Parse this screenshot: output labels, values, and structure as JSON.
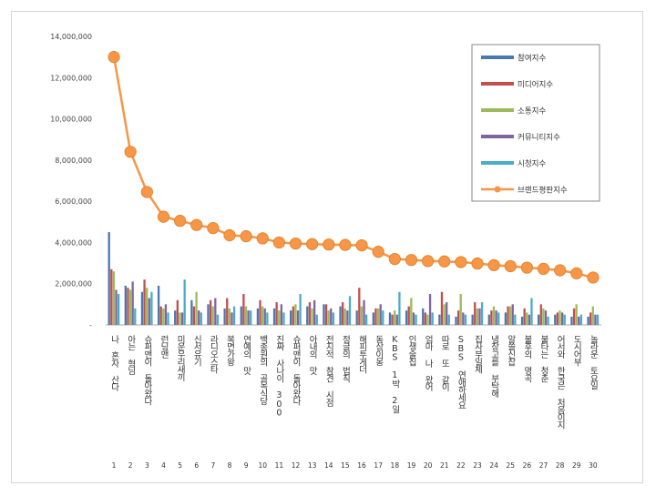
{
  "chart_data": {
    "type": "bar",
    "ylim": [
      0,
      14000000
    ],
    "yticks": [
      "14,000,000",
      "12,000,000",
      "10,000,000",
      "8,000,000",
      "6,000,000",
      "4,000,000",
      "2,000,000",
      "-"
    ],
    "ytick_values": [
      14000000,
      12000000,
      10000000,
      8000000,
      6000000,
      4000000,
      2000000,
      0
    ],
    "grid": false,
    "legend_position": "top-right",
    "x": [
      "1",
      "2",
      "3",
      "4",
      "5",
      "6",
      "7",
      "8",
      "9",
      "10",
      "11",
      "12",
      "13",
      "14",
      "15",
      "16",
      "17",
      "18",
      "19",
      "20",
      "21",
      "22",
      "23",
      "24",
      "25",
      "26",
      "27",
      "28",
      "29",
      "30"
    ],
    "categories": [
      "나 혼자 산다",
      "아는 형님",
      "슈퍼맨이 돌아왔다",
      "런닝맨",
      "미운우리새끼",
      "신서유기",
      "라디오스타",
      "복면가왕",
      "연예의 맛",
      "백종원의 골목식당",
      "진짜 사나이 300",
      "슈퍼맨이 돌아왔다",
      "아내의 맛",
      "전지적 참견 시점",
      "정글의 법칙",
      "해피투게더",
      "동상이몽",
      "KBS 1박 2일",
      "인생술집",
      "엄마 나 왔어",
      "따로 또 같이",
      "SBS 연애하세요",
      "집사부일체",
      "냉장고를 부탁해",
      "알쓸신잡",
      "불후의 명곡",
      "불타는 청춘",
      "어서와 한국은 처음이지",
      "도시어부",
      "놀라운 토요일"
    ],
    "series": [
      {
        "name": "참여지수",
        "color": "#4a78b0",
        "type": "bar",
        "values": [
          4500000,
          1900000,
          1600000,
          1900000,
          700000,
          1200000,
          1000000,
          800000,
          900000,
          800000,
          800000,
          700000,
          900000,
          1000000,
          900000,
          700000,
          600000,
          600000,
          700000,
          800000,
          500000,
          400000,
          500000,
          500000,
          600000,
          400000,
          500000,
          500000,
          400000,
          400000
        ]
      },
      {
        "name": "미디어지수",
        "color": "#c0504d",
        "type": "bar",
        "values": [
          2700000,
          1800000,
          2200000,
          900000,
          1200000,
          900000,
          1200000,
          1300000,
          1500000,
          1200000,
          1100000,
          900000,
          1100000,
          1000000,
          1100000,
          1800000,
          800000,
          500000,
          900000,
          600000,
          1600000,
          700000,
          1100000,
          700000,
          900000,
          800000,
          1000000,
          600000,
          800000,
          600000
        ]
      },
      {
        "name": "소통지수",
        "color": "#9bbb59",
        "type": "bar",
        "values": [
          2600000,
          1700000,
          1800000,
          800000,
          600000,
          1600000,
          900000,
          800000,
          900000,
          900000,
          700000,
          1000000,
          800000,
          700000,
          800000,
          900000,
          800000,
          700000,
          1300000,
          500000,
          1000000,
          1500000,
          800000,
          900000,
          900000,
          600000,
          800000,
          700000,
          1000000,
          900000
        ]
      },
      {
        "name": "커뮤니티지수",
        "color": "#8064a2",
        "type": "bar",
        "values": [
          1700000,
          2100000,
          1300000,
          1000000,
          600000,
          700000,
          1300000,
          600000,
          700000,
          800000,
          1000000,
          700000,
          1200000,
          800000,
          700000,
          1200000,
          1000000,
          500000,
          600000,
          1500000,
          1100000,
          600000,
          800000,
          700000,
          1000000,
          500000,
          700000,
          600000,
          400000,
          500000
        ]
      },
      {
        "name": "시청지수",
        "color": "#4bacc6",
        "type": "bar",
        "values": [
          1500000,
          800000,
          1600000,
          600000,
          2200000,
          600000,
          500000,
          900000,
          700000,
          600000,
          600000,
          1500000,
          500000,
          600000,
          1400000,
          500000,
          700000,
          1600000,
          500000,
          600000,
          500000,
          500000,
          1100000,
          600000,
          500000,
          1300000,
          400000,
          500000,
          500000,
          500000
        ]
      },
      {
        "name": "브랜드평판지수",
        "color": "#f79646",
        "type": "line",
        "values": [
          13000000,
          8400000,
          6450000,
          5250000,
          5050000,
          4850000,
          4700000,
          4350000,
          4300000,
          4200000,
          4000000,
          3950000,
          3920000,
          3900000,
          3880000,
          3860000,
          3550000,
          3200000,
          3150000,
          3100000,
          3080000,
          3050000,
          2980000,
          2900000,
          2850000,
          2780000,
          2720000,
          2650000,
          2500000,
          2300000
        ]
      }
    ]
  }
}
